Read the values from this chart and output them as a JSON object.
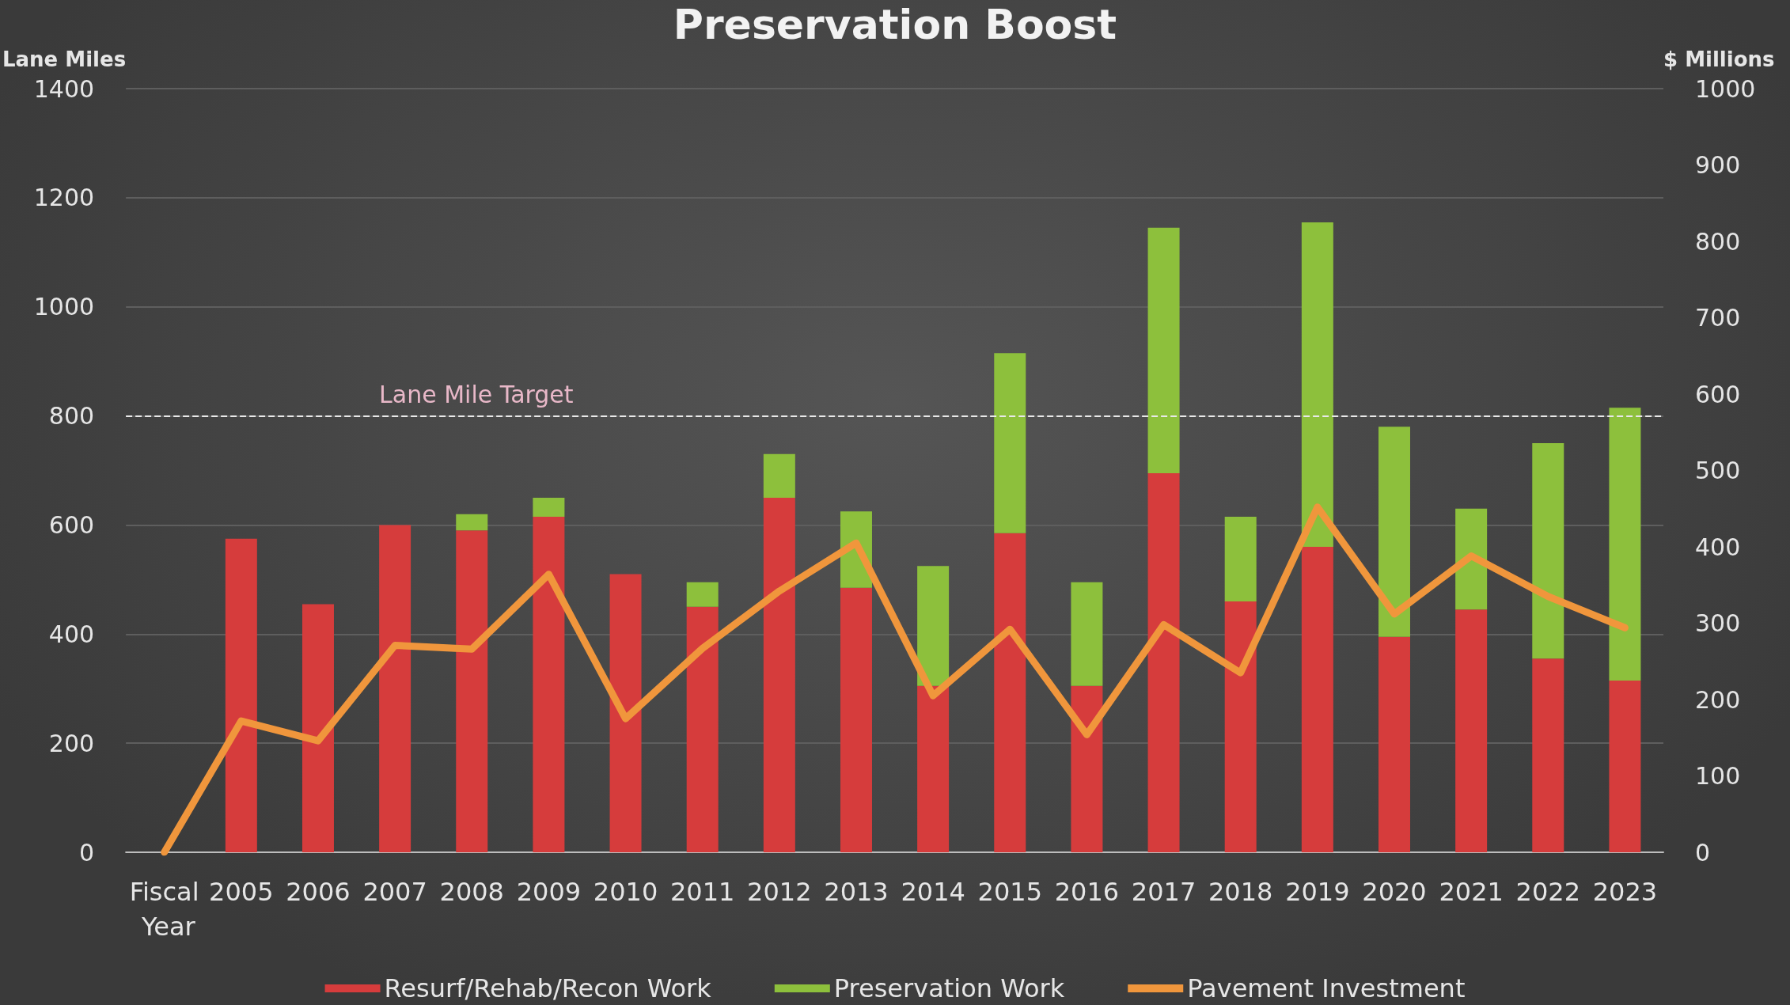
{
  "chart_data": {
    "type": "bar",
    "title": "Preservation Boost",
    "ylabel": "Lane Miles",
    "y2label": "$ Millions",
    "categories": [
      "Fiscal Year",
      "2005",
      "2006",
      "2007",
      "2008",
      "2009",
      "2010",
      "2011",
      "2012",
      "2013",
      "2014",
      "2015",
      "2016",
      "2017",
      "2018",
      "2019",
      "2020",
      "2021",
      "2022",
      "2023"
    ],
    "stacked": true,
    "series": [
      {
        "name": "Resurf/Rehab/Recon Work",
        "color": "#d63c3c",
        "values": [
          null,
          575,
          455,
          600,
          590,
          615,
          510,
          450,
          650,
          485,
          305,
          585,
          305,
          695,
          460,
          560,
          395,
          445,
          355,
          315
        ]
      },
      {
        "name": "Preservation Work",
        "color": "#8dc03c",
        "values": [
          null,
          null,
          null,
          null,
          30,
          35,
          null,
          45,
          80,
          140,
          220,
          330,
          190,
          450,
          155,
          595,
          385,
          185,
          395,
          500
        ]
      },
      {
        "name": "Pavement Investment",
        "type": "line",
        "axis": "y2",
        "color": "#f0963c",
        "values": [
          0,
          172,
          146,
          271,
          266,
          364,
          175,
          267,
          342,
          405,
          205,
          292,
          154,
          298,
          235,
          452,
          312,
          388,
          335,
          294
        ]
      }
    ],
    "ylim": [
      0,
      1400
    ],
    "yticks": [
      0,
      200,
      400,
      600,
      800,
      1000,
      1200,
      1400
    ],
    "y2lim": [
      0,
      1000
    ],
    "y2ticks": [
      0,
      100,
      200,
      300,
      400,
      500,
      600,
      700,
      800,
      900,
      1000
    ],
    "ref_lines": [
      {
        "axis": "y",
        "value": 800,
        "label": "Lane Mile Target",
        "color": "#e8e8e8",
        "line_style": "dashed"
      }
    ],
    "grid": "y",
    "legend": "bottom",
    "marker": "none"
  }
}
